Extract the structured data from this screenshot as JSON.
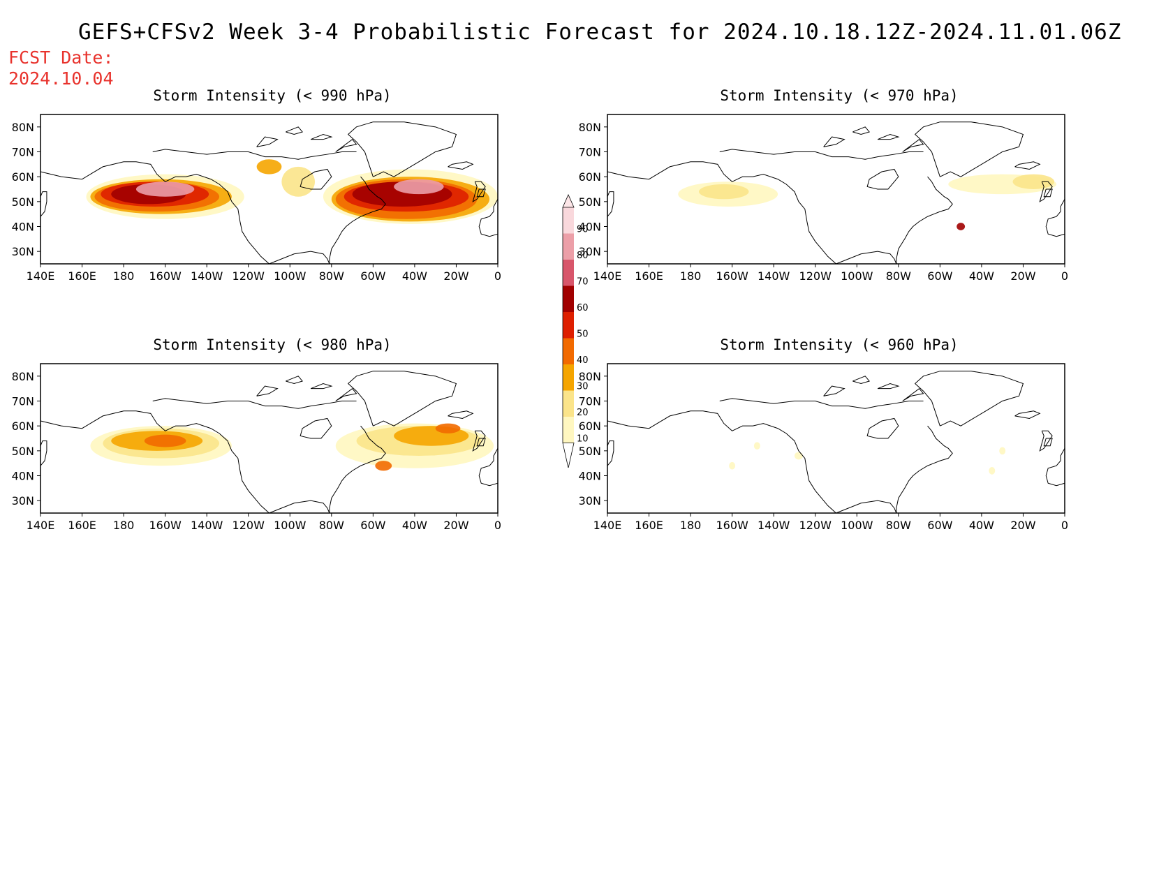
{
  "title": "GEFS+CFSv2 Week 3-4 Probabilistic Forecast for 2024.10.18.12Z-2024.11.01.06Z",
  "fcst_date": {
    "label": "FCST Date:",
    "value": "2024.10.04"
  },
  "lat_ticks": [
    "80N",
    "70N",
    "60N",
    "50N",
    "40N",
    "30N"
  ],
  "lon_ticks": [
    "140E",
    "160E",
    "180",
    "160W",
    "140W",
    "120W",
    "100W",
    "80W",
    "60W",
    "40W",
    "20W",
    "0"
  ],
  "panels": [
    {
      "title": "Storm Intensity (< 990 hPa)",
      "threshold_hpa": 990
    },
    {
      "title": "Storm Intensity (< 970 hPa)",
      "threshold_hpa": 970
    },
    {
      "title": "Storm Intensity (< 980 hPa)",
      "threshold_hpa": 980
    },
    {
      "title": "Storm Intensity (< 960 hPa)",
      "threshold_hpa": 960
    }
  ],
  "colorbar": {
    "levels": [
      "10",
      "20",
      "30",
      "40",
      "50",
      "60",
      "70",
      "80",
      "90"
    ],
    "colors": [
      "#fff7c0",
      "#fbe48a",
      "#f5a500",
      "#f26a00",
      "#de1f00",
      "#a10000",
      "#d8566b",
      "#ec9fa8",
      "#f9d8dc"
    ]
  },
  "colors": {
    "title": "#000000",
    "fcst_date": "#e8322c",
    "coast": "#000000"
  }
}
